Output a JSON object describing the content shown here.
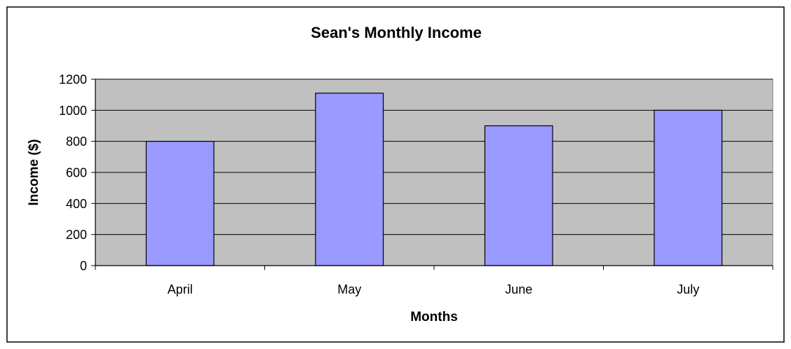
{
  "chart_data": {
    "type": "bar",
    "title": "Sean's Monthly Income",
    "xlabel": "Months",
    "ylabel": "Income ($)",
    "categories": [
      "April",
      "May",
      "June",
      "July"
    ],
    "values": [
      800,
      1110,
      900,
      1000
    ],
    "ylim": [
      0,
      1200
    ],
    "yticks": [
      "0",
      "200",
      "400",
      "600",
      "800",
      "1000",
      "1200"
    ],
    "grid": true,
    "legend": "none",
    "colors": {
      "bar_fill": "#9999ff",
      "bar_stroke": "#000000",
      "plot_bg": "#c0c0c0",
      "grid": "#000000",
      "frame": "#000000"
    }
  }
}
